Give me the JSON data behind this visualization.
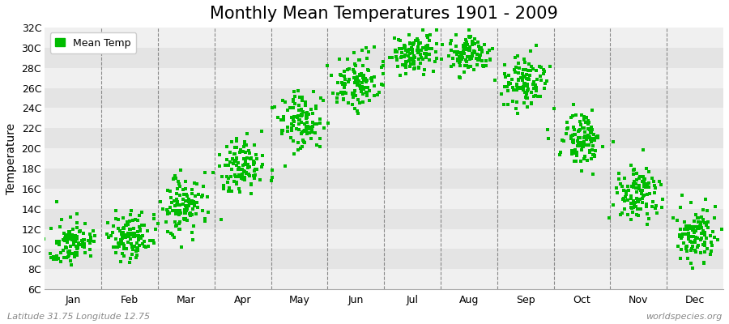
{
  "title": "Monthly Mean Temperatures 1901 - 2009",
  "ylabel": "Temperature",
  "xlabel": "",
  "background_color": "#ffffff",
  "plot_bg_color": "#f0f0f0",
  "grid_color_light": "#e8e8e8",
  "grid_color_dark": "#d8d8d8",
  "dot_color": "#00bb00",
  "dot_size": 5,
  "dot_marker": "s",
  "ylim": [
    6,
    32
  ],
  "yticks": [
    6,
    8,
    10,
    12,
    14,
    16,
    18,
    20,
    22,
    24,
    26,
    28,
    30,
    32
  ],
  "ytick_labels": [
    "6C",
    "8C",
    "10C",
    "12C",
    "14C",
    "16C",
    "18C",
    "20C",
    "22C",
    "24C",
    "26C",
    "28C",
    "30C",
    "32C"
  ],
  "month_labels": [
    "Jan",
    "Feb",
    "Mar",
    "Apr",
    "May",
    "Jun",
    "Jul",
    "Aug",
    "Sep",
    "Oct",
    "Nov",
    "Dec"
  ],
  "title_fontsize": 15,
  "axis_fontsize": 10,
  "tick_fontsize": 9,
  "legend_label": "Mean Temp",
  "footer_left": "Latitude 31.75 Longitude 12.75",
  "footer_right": "worldspecies.org",
  "monthly_mean": [
    10.5,
    11.2,
    14.2,
    18.0,
    22.5,
    26.5,
    29.2,
    29.2,
    26.5,
    21.0,
    15.5,
    11.5
  ],
  "monthly_std": [
    1.1,
    1.2,
    1.5,
    1.5,
    1.5,
    1.4,
    1.0,
    1.0,
    1.2,
    1.4,
    1.4,
    1.3
  ],
  "n_years": 109,
  "band_colors": [
    "#f0f0f0",
    "#e4e4e4"
  ]
}
